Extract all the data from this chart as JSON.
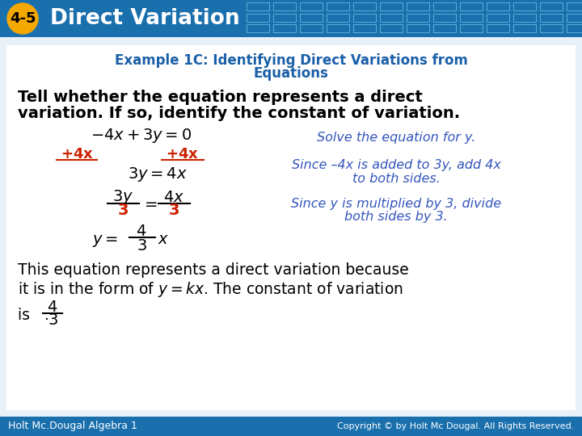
{
  "title_badge": "4-5",
  "title_text": "Direct Variation",
  "header_bg": "#1a6fad",
  "badge_color": "#f5a800",
  "example_title_line1": "Example 1C: Identifying Direct Variations from",
  "example_title_line2": "Equations",
  "example_title_color": "#1a5fa8",
  "slide_bg": "#dce8f5",
  "content_bg": "#ffffff",
  "footer_text": "Holt Mc.Dougal Algebra 1",
  "footer_bg": "#1a6fad",
  "footer_copyright": "Copyright © by Holt Mc Dougal. All Rights Reserved.",
  "ann_color": "#3355bb",
  "red_color": "#cc2200",
  "black": "#000000",
  "white": "#ffffff"
}
